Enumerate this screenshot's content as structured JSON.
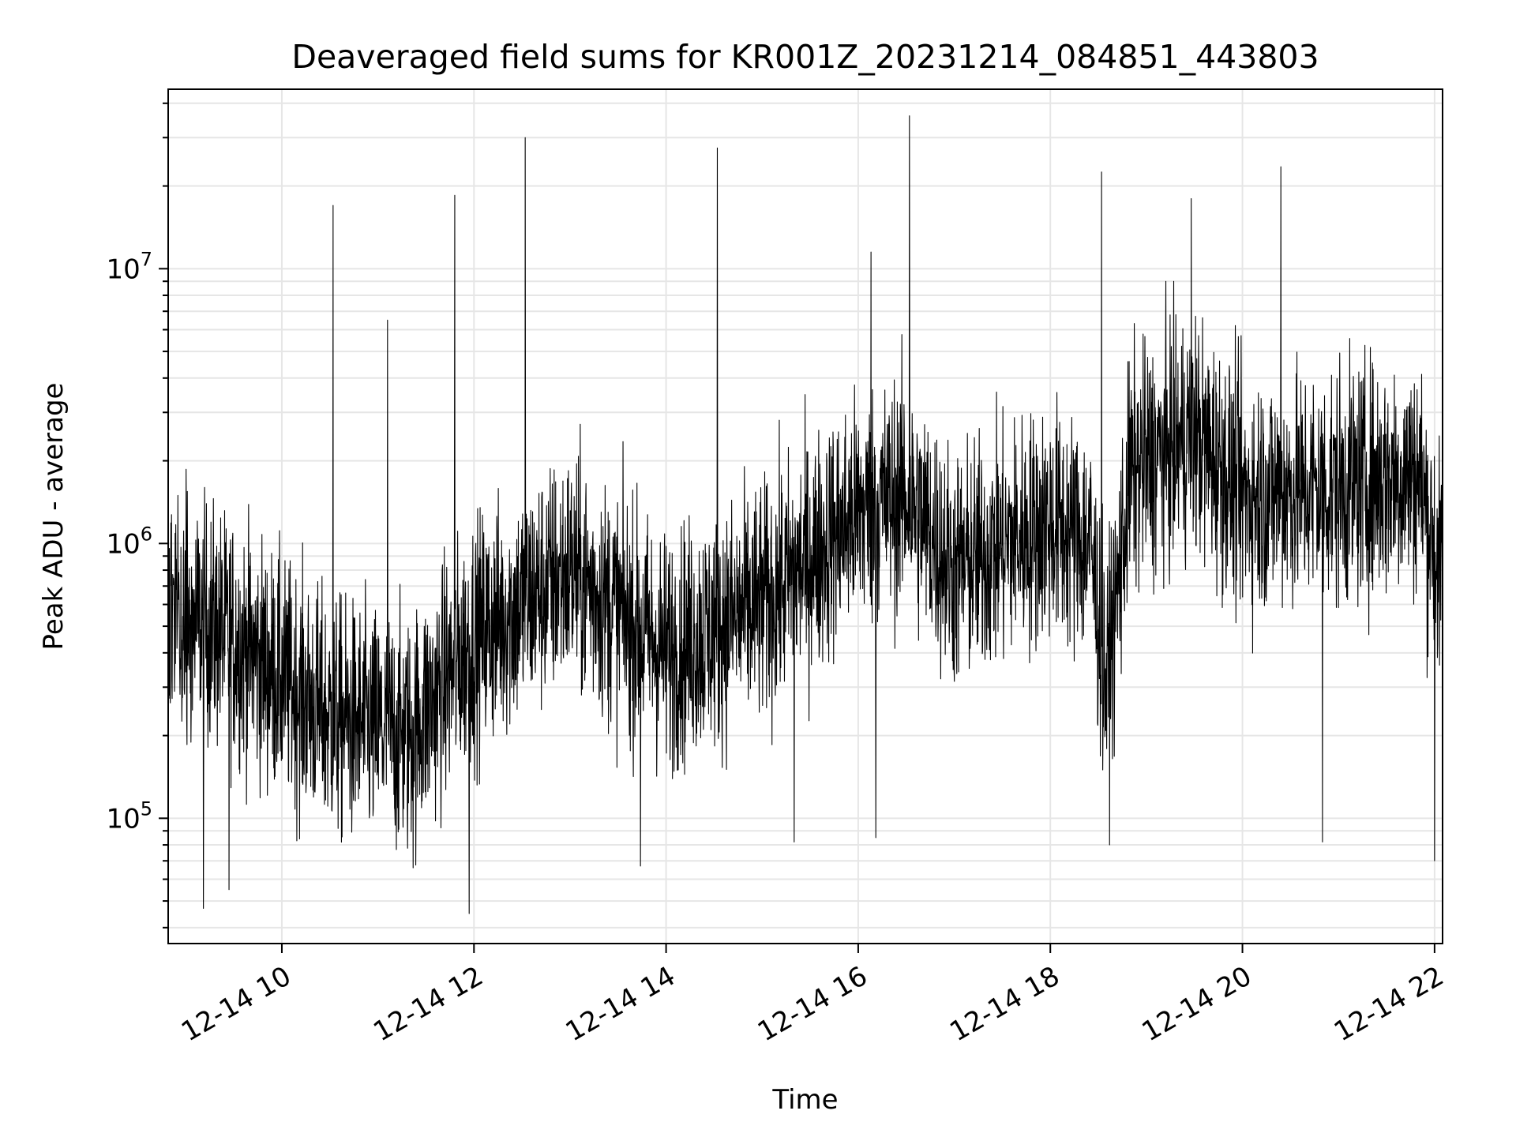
{
  "chart_data": {
    "type": "line",
    "title": "Deaveraged field sums for KR001Z_20231214_084851_443803",
    "xlabel": "Time",
    "ylabel": "Peak ADU - average",
    "yscale": "log",
    "xlim": [
      "2023-12-14T08:49",
      "2023-12-14T22:05"
    ],
    "ylim": [
      35000,
      45000000
    ],
    "grid": true,
    "line_color": "#000000",
    "x_ticks": [
      {
        "label": "12-14 10",
        "time": "2023-12-14T10:00"
      },
      {
        "label": "12-14 12",
        "time": "2023-12-14T12:00"
      },
      {
        "label": "12-14 14",
        "time": "2023-12-14T14:00"
      },
      {
        "label": "12-14 16",
        "time": "2023-12-14T16:00"
      },
      {
        "label": "12-14 18",
        "time": "2023-12-14T18:00"
      },
      {
        "label": "12-14 20",
        "time": "2023-12-14T20:00"
      },
      {
        "label": "12-14 22",
        "time": "2023-12-14T22:00"
      }
    ],
    "y_ticks": [
      {
        "base": "10",
        "exp": "5",
        "value": 100000
      },
      {
        "base": "10",
        "exp": "6",
        "value": 1000000
      },
      {
        "base": "10",
        "exp": "7",
        "value": 10000000
      }
    ],
    "baseline": [
      {
        "time": "2023-12-14T08:49",
        "value": 600000
      },
      {
        "time": "2023-12-14T09:30",
        "value": 450000
      },
      {
        "time": "2023-12-14T10:30",
        "value": 230000
      },
      {
        "time": "2023-12-14T11:20",
        "value": 200000
      },
      {
        "time": "2023-12-14T12:00",
        "value": 450000
      },
      {
        "time": "2023-12-14T13:00",
        "value": 800000
      },
      {
        "time": "2023-12-14T14:00",
        "value": 400000
      },
      {
        "time": "2023-12-14T15:00",
        "value": 600000
      },
      {
        "time": "2023-12-14T16:00",
        "value": 1300000
      },
      {
        "time": "2023-12-14T16:30",
        "value": 1500000
      },
      {
        "time": "2023-12-14T17:00",
        "value": 800000
      },
      {
        "time": "2023-12-14T18:00",
        "value": 1200000
      },
      {
        "time": "2023-12-14T18:25",
        "value": 1000000
      },
      {
        "time": "2023-12-14T18:35",
        "value": 300000
      },
      {
        "time": "2023-12-14T18:50",
        "value": 1800000
      },
      {
        "time": "2023-12-14T19:30",
        "value": 2500000
      },
      {
        "time": "2023-12-14T20:00",
        "value": 1500000
      },
      {
        "time": "2023-12-14T21:00",
        "value": 1600000
      },
      {
        "time": "2023-12-14T21:50",
        "value": 1800000
      },
      {
        "time": "2023-12-14T22:05",
        "value": 700000
      }
    ],
    "spikes": [
      {
        "time": "2023-12-14T10:32",
        "value": 17000000
      },
      {
        "time": "2023-12-14T11:06",
        "value": 6500000
      },
      {
        "time": "2023-12-14T11:48",
        "value": 18500000
      },
      {
        "time": "2023-12-14T12:32",
        "value": 30000000
      },
      {
        "time": "2023-12-14T14:32",
        "value": 27500000
      },
      {
        "time": "2023-12-14T16:32",
        "value": 36000000
      },
      {
        "time": "2023-12-14T18:32",
        "value": 22500000
      },
      {
        "time": "2023-12-14T20:24",
        "value": 23500000
      },
      {
        "time": "2023-12-14T19:28",
        "value": 18000000
      },
      {
        "time": "2023-12-14T16:08",
        "value": 11500000
      },
      {
        "time": "2023-12-14T11:57",
        "value": 45000
      },
      {
        "time": "2023-12-14T09:11",
        "value": 47000
      },
      {
        "time": "2023-12-14T09:27",
        "value": 55000
      },
      {
        "time": "2023-12-14T13:44",
        "value": 67000
      },
      {
        "time": "2023-12-14T11:22",
        "value": 66000
      },
      {
        "time": "2023-12-14T18:37",
        "value": 80000
      },
      {
        "time": "2023-12-14T15:20",
        "value": 82000
      },
      {
        "time": "2023-12-14T16:11",
        "value": 85000
      },
      {
        "time": "2023-12-14T20:50",
        "value": 82000
      },
      {
        "time": "2023-12-14T22:00",
        "value": 70000
      }
    ]
  }
}
